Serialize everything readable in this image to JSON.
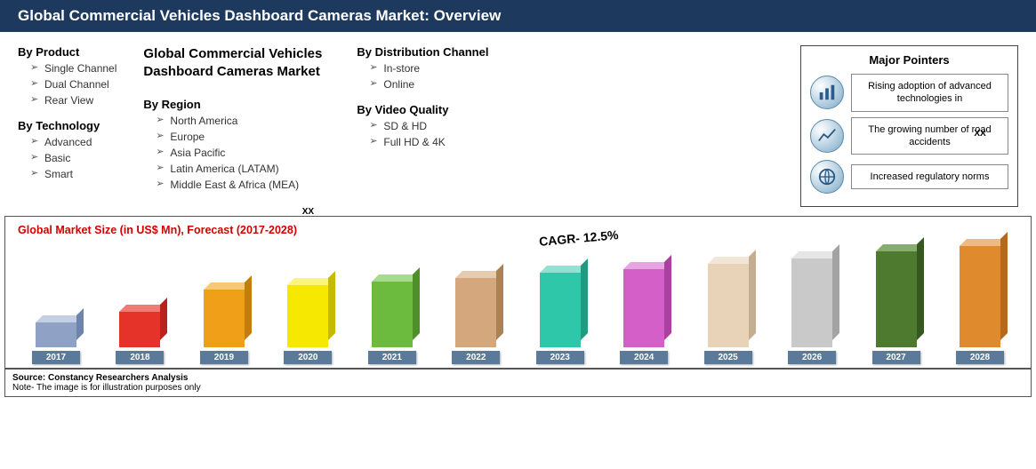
{
  "header": {
    "title": "Global Commercial Vehicles Dashboard Cameras Market: Overview"
  },
  "main_title": "Global Commercial Vehicles Dashboard Cameras Market",
  "segments": {
    "product": {
      "title": "By Product",
      "items": [
        "Single Channel",
        "Dual Channel",
        "Rear View"
      ]
    },
    "technology": {
      "title": "By Technology",
      "items": [
        "Advanced",
        "Basic",
        "Smart"
      ]
    },
    "region": {
      "title": "By Region",
      "items": [
        "North America",
        "Europe",
        "Asia Pacific",
        "Latin America (LATAM)",
        "Middle East & Africa (MEA)"
      ]
    },
    "distribution": {
      "title": "By Distribution Channel",
      "items": [
        "In-store",
        "Online"
      ]
    },
    "video": {
      "title": "By Video Quality",
      "items": [
        "SD & HD",
        "Full HD & 4K"
      ]
    }
  },
  "pointers": {
    "title": "Major Pointers",
    "items": [
      "Rising adoption of advanced technologies in",
      "The growing number of road accidents",
      "Increased regulatory norms"
    ]
  },
  "chart": {
    "title": "Global Market Size (in US$ Mn), Forecast (2017-2028)",
    "cagr": "CAGR- 12.5%",
    "type": "bar-3d",
    "label_fontsize": 10,
    "title_fontsize": 12.5,
    "title_color": "#d40000",
    "year_label_bg": "#5b7a99",
    "year_label_color": "#ffffff",
    "bars": [
      {
        "year": "2017",
        "value": 28,
        "front": "#8fa2c6",
        "top": "#c3cfe4",
        "side": "#6f84ab",
        "label": ""
      },
      {
        "year": "2018",
        "value": 40,
        "front": "#e6332a",
        "top": "#f07a74",
        "side": "#b8241d",
        "label": ""
      },
      {
        "year": "2019",
        "value": 65,
        "front": "#f0a018",
        "top": "#f7c972",
        "side": "#c17e0a",
        "label": ""
      },
      {
        "year": "2020",
        "value": 70,
        "front": "#f6e800",
        "top": "#fcf480",
        "side": "#c6ba00",
        "label": "XX"
      },
      {
        "year": "2021",
        "value": 74,
        "front": "#6cbb3f",
        "top": "#a7db8c",
        "side": "#4e8f2a",
        "label": ""
      },
      {
        "year": "2022",
        "value": 78,
        "front": "#d4a77c",
        "top": "#e6cbae",
        "side": "#ab8158",
        "label": ""
      },
      {
        "year": "2023",
        "value": 84,
        "front": "#2fc7a9",
        "top": "#8ee3d2",
        "side": "#1f9b82",
        "label": ""
      },
      {
        "year": "2024",
        "value": 88,
        "front": "#d55fc9",
        "top": "#e8a4e1",
        "side": "#a9429e",
        "label": ""
      },
      {
        "year": "2025",
        "value": 94,
        "front": "#e8d2b8",
        "top": "#f3e6d6",
        "side": "#c4ad91",
        "label": ""
      },
      {
        "year": "2026",
        "value": 100,
        "front": "#c9c9c9",
        "top": "#e6e6e6",
        "side": "#a3a3a3",
        "label": ""
      },
      {
        "year": "2027",
        "value": 108,
        "front": "#4d7a2f",
        "top": "#86ad6c",
        "side": "#355820",
        "label": ""
      },
      {
        "year": "2028",
        "value": 114,
        "front": "#e08a2e",
        "top": "#efba82",
        "side": "#b56a1b",
        "label": "XX"
      }
    ]
  },
  "footer": {
    "source": "Source: Constancy Researchers Analysis",
    "note": "Note- The image is for illustration purposes only"
  }
}
